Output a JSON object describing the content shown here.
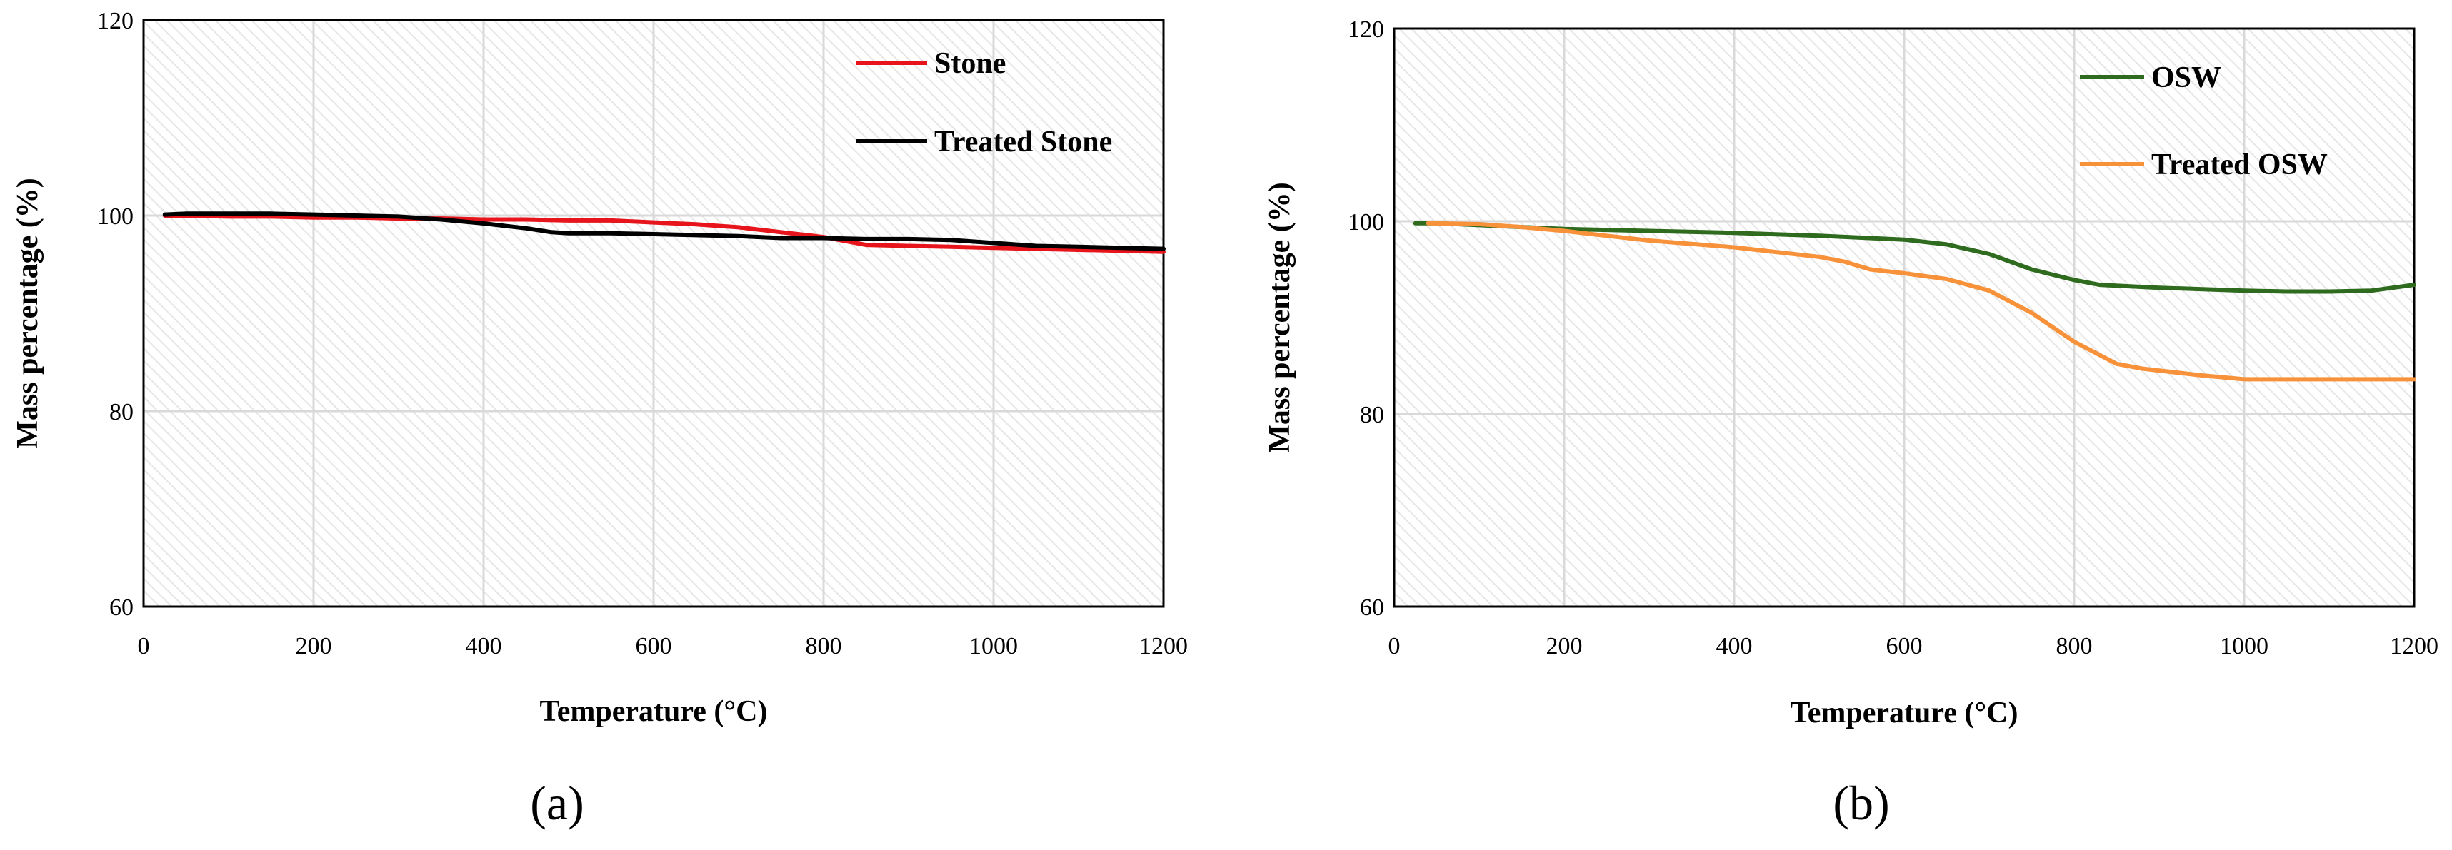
{
  "chart_data": [
    {
      "type": "line",
      "panel_label": "(a)",
      "xlabel": "Temperature (°C)",
      "ylabel": "Mass percentage (%)",
      "xlim": [
        0,
        1200
      ],
      "ylim": [
        60,
        120
      ],
      "xticks": [
        0,
        200,
        400,
        600,
        800,
        1000,
        1200
      ],
      "yticks": [
        60,
        80,
        100,
        120
      ],
      "grid": true,
      "legend_position": "top-right",
      "series": [
        {
          "name": "Stone",
          "color": "#e8141b",
          "x": [
            25,
            50,
            100,
            150,
            200,
            250,
            300,
            350,
            400,
            450,
            500,
            550,
            600,
            650,
            700,
            750,
            800,
            850,
            900,
            950,
            1000,
            1050,
            1100,
            1150,
            1200
          ],
          "y": [
            100.0,
            100.0,
            99.9,
            99.9,
            99.8,
            99.8,
            99.7,
            99.7,
            99.6,
            99.6,
            99.5,
            99.5,
            99.3,
            99.1,
            98.8,
            98.3,
            97.8,
            97.0,
            96.9,
            96.8,
            96.7,
            96.6,
            96.5,
            96.4,
            96.3
          ]
        },
        {
          "name": "Treated Stone",
          "color": "#000000",
          "x": [
            25,
            50,
            100,
            150,
            200,
            250,
            300,
            350,
            400,
            450,
            480,
            500,
            550,
            600,
            650,
            700,
            750,
            800,
            850,
            900,
            950,
            1000,
            1050,
            1100,
            1150,
            1200
          ],
          "y": [
            100.1,
            100.2,
            100.2,
            100.2,
            100.1,
            100.0,
            99.9,
            99.6,
            99.2,
            98.7,
            98.3,
            98.2,
            98.2,
            98.1,
            98.0,
            97.9,
            97.7,
            97.7,
            97.6,
            97.6,
            97.5,
            97.2,
            96.9,
            96.8,
            96.7,
            96.6
          ]
        }
      ]
    },
    {
      "type": "line",
      "panel_label": "(b)",
      "xlabel": "Temperature (°C)",
      "ylabel": "Mass percentage (%)",
      "xlim": [
        0,
        1200
      ],
      "ylim": [
        60,
        120
      ],
      "xticks": [
        0,
        200,
        400,
        600,
        800,
        1000,
        1200
      ],
      "yticks": [
        60,
        80,
        100,
        120
      ],
      "grid": true,
      "legend_position": "top-right",
      "series": [
        {
          "name": "OSW",
          "color": "#2e6b1f",
          "x": [
            25,
            50,
            100,
            150,
            200,
            300,
            400,
            500,
            600,
            650,
            700,
            750,
            800,
            830,
            900,
            1000,
            1050,
            1100,
            1150,
            1200
          ],
          "y": [
            99.8,
            99.8,
            99.6,
            99.4,
            99.2,
            99.0,
            98.8,
            98.5,
            98.1,
            97.6,
            96.6,
            95.0,
            93.9,
            93.4,
            93.1,
            92.8,
            92.7,
            92.7,
            92.8,
            93.4
          ]
        },
        {
          "name": "Treated OSW",
          "color": "#f7923a",
          "x": [
            40,
            100,
            150,
            200,
            250,
            300,
            400,
            500,
            530,
            560,
            600,
            650,
            700,
            750,
            800,
            850,
            880,
            950,
            1000,
            1100,
            1200
          ],
          "y": [
            99.8,
            99.7,
            99.4,
            99.0,
            98.5,
            98.0,
            97.3,
            96.3,
            95.8,
            95.0,
            94.6,
            94.0,
            92.8,
            90.5,
            87.5,
            85.2,
            84.7,
            84.0,
            83.6,
            83.6,
            83.6
          ]
        }
      ]
    }
  ]
}
